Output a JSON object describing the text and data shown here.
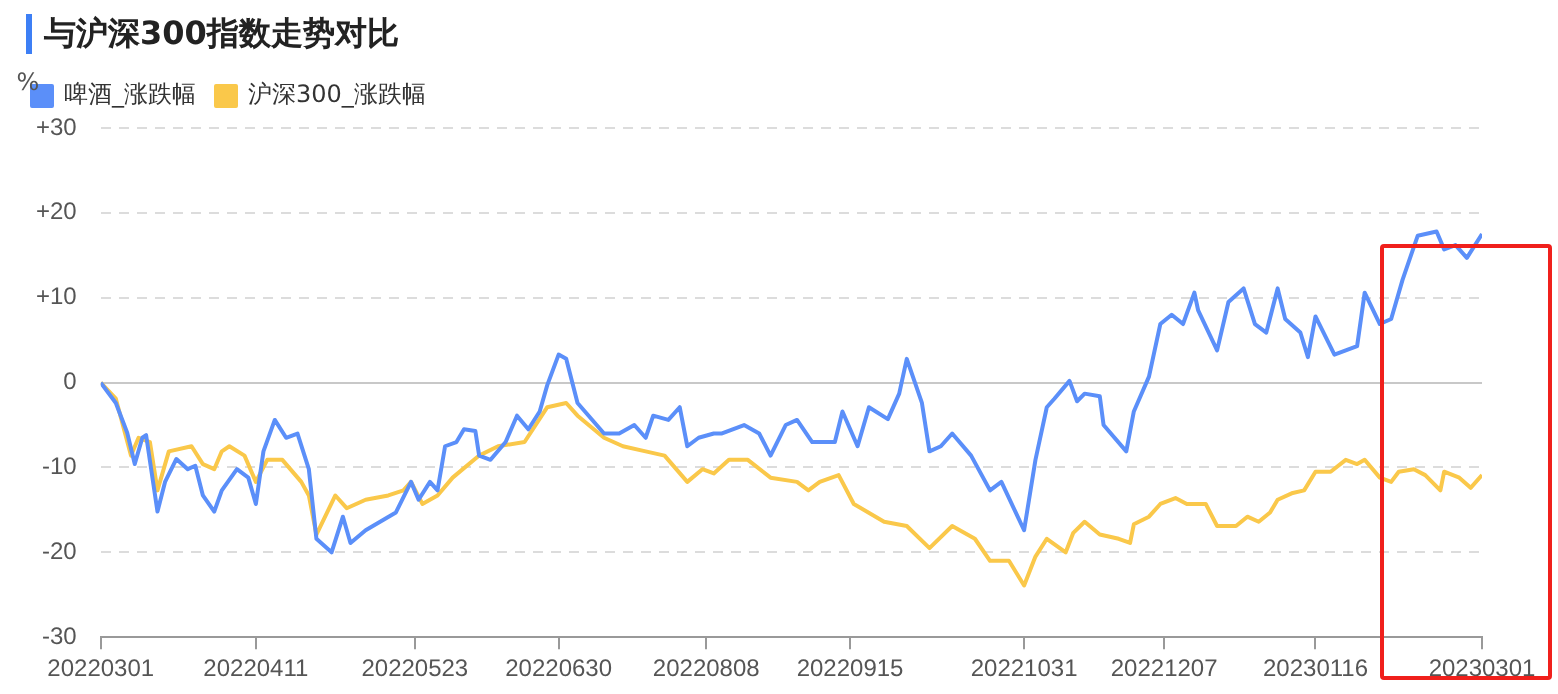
{
  "chart_data": {
    "type": "line",
    "title": "与沪深300指数走势对比",
    "ylabel": "%",
    "legend": "top left",
    "grid": "y",
    "marker": "none",
    "line_style": "solid",
    "xlim": [
      "2022-03-01",
      "2023-03-01"
    ],
    "xticks": [
      {
        "value": "2022-03-01",
        "label": "20220301"
      },
      {
        "value": "2022-04-11",
        "label": "20220411"
      },
      {
        "value": "2022-05-23",
        "label": "20220523"
      },
      {
        "value": "2022-06-30",
        "label": "20220630"
      },
      {
        "value": "2022-08-08",
        "label": "20220808"
      },
      {
        "value": "2022-09-15",
        "label": "20220915"
      },
      {
        "value": "2022-10-31",
        "label": "20221031"
      },
      {
        "value": "2022-12-07",
        "label": "20221207"
      },
      {
        "value": "2023-01-16",
        "label": "20230116"
      },
      {
        "value": "2023-03-01",
        "label": "20230301"
      }
    ],
    "ylim": [
      -30,
      30
    ],
    "yticks": [
      {
        "value": -30,
        "label": "-30"
      },
      {
        "value": -20,
        "label": "-20"
      },
      {
        "value": -10,
        "label": "-10"
      },
      0,
      {
        "value": 10,
        "label": "+10"
      },
      {
        "value": 20,
        "label": "+20"
      },
      {
        "value": 30,
        "label": "+30"
      }
    ],
    "series": [
      {
        "name": "啤酒_涨跌幅",
        "color": "#5b8ff9",
        "x": [
          "2022-03-01",
          "2022-03-05",
          "2022-03-08",
          "2022-03-10",
          "2022-03-12",
          "2022-03-13",
          "2022-03-16",
          "2022-03-18",
          "2022-03-21",
          "2022-03-24",
          "2022-03-26",
          "2022-03-28",
          "2022-03-31",
          "2022-04-02",
          "2022-04-06",
          "2022-04-09",
          "2022-04-11",
          "2022-04-13",
          "2022-04-16",
          "2022-04-19",
          "2022-04-22",
          "2022-04-25",
          "2022-04-27",
          "2022-05-01",
          "2022-05-04",
          "2022-05-06",
          "2022-05-10",
          "2022-05-18",
          "2022-05-22",
          "2022-05-24",
          "2022-05-27",
          "2022-05-29",
          "2022-05-31",
          "2022-06-03",
          "2022-06-05",
          "2022-06-08",
          "2022-06-09",
          "2022-06-12",
          "2022-06-16",
          "2022-06-19",
          "2022-06-22",
          "2022-06-25",
          "2022-06-27",
          "2022-06-30",
          "2022-07-02",
          "2022-07-05",
          "2022-07-12",
          "2022-07-16",
          "2022-07-20",
          "2022-07-23",
          "2022-07-25",
          "2022-07-29",
          "2022-08-01",
          "2022-08-03",
          "2022-08-06",
          "2022-08-10",
          "2022-08-12",
          "2022-08-18",
          "2022-08-22",
          "2022-08-25",
          "2022-08-29",
          "2022-09-01",
          "2022-09-05",
          "2022-09-11",
          "2022-09-13",
          "2022-09-17",
          "2022-09-20",
          "2022-09-25",
          "2022-09-28",
          "2022-09-30",
          "2022-10-04",
          "2022-10-06",
          "2022-10-09",
          "2022-10-12",
          "2022-10-17",
          "2022-10-22",
          "2022-10-25",
          "2022-10-31",
          "2022-11-03",
          "2022-11-06",
          "2022-11-08",
          "2022-11-12",
          "2022-11-14",
          "2022-11-16",
          "2022-11-20",
          "2022-11-21",
          "2022-11-27",
          "2022-11-29",
          "2022-12-03",
          "2022-12-06",
          "2022-12-09",
          "2022-12-12",
          "2022-12-15",
          "2022-12-16",
          "2022-12-21",
          "2022-12-24",
          "2022-12-28",
          "2022-12-31",
          "2023-01-03",
          "2023-01-06",
          "2023-01-08",
          "2023-01-12",
          "2023-01-14",
          "2023-01-16",
          "2023-01-21",
          "2023-01-24",
          "2023-01-27",
          "2023-01-29",
          "2023-02-02",
          "2023-02-05",
          "2023-02-08",
          "2023-02-12",
          "2023-02-17",
          "2023-02-19",
          "2023-02-22",
          "2023-02-25",
          "2023-03-01"
        ],
        "values": [
          0,
          -2.4,
          -5.9,
          -9.6,
          -6.5,
          -6.2,
          -15.2,
          -11.7,
          -9.0,
          -10.2,
          -9.8,
          -13.3,
          -15.2,
          -12.7,
          -10.2,
          -11.2,
          -14.3,
          -8.1,
          -4.4,
          -6.5,
          -6.0,
          -10.2,
          -18.4,
          -20.0,
          -15.8,
          -18.9,
          -17.4,
          -15.3,
          -11.7,
          -13.8,
          -11.7,
          -12.7,
          -7.5,
          -7.0,
          -5.5,
          -5.7,
          -8.6,
          -9.1,
          -7.0,
          -3.9,
          -5.5,
          -3.4,
          -0.3,
          3.3,
          2.8,
          -2.4,
          -6.0,
          -6.0,
          -5.0,
          -6.5,
          -3.9,
          -4.4,
          -2.9,
          -7.5,
          -6.5,
          -6.0,
          -6.0,
          -5.0,
          -6.0,
          -8.6,
          -5.0,
          -4.4,
          -7.0,
          -7.0,
          -3.4,
          -7.5,
          -2.9,
          -4.3,
          -1.3,
          2.8,
          -2.4,
          -8.1,
          -7.5,
          -6.0,
          -8.6,
          -12.7,
          -11.7,
          -17.4,
          -9.1,
          -2.9,
          -1.9,
          0.2,
          -2.2,
          -1.3,
          -1.6,
          -5.0,
          -8.1,
          -3.4,
          0.7,
          6.9,
          8.0,
          6.9,
          10.6,
          8.5,
          3.8,
          9.5,
          11.1,
          6.9,
          5.9,
          11.1,
          7.5,
          5.9,
          3.0,
          7.8,
          3.3,
          3.8,
          4.3,
          10.6,
          6.9,
          7.5,
          12.1,
          17.3,
          17.8,
          15.7,
          16.2,
          14.7,
          17.5
        ]
      },
      {
        "name": "沪深300_涨跌幅",
        "color": "#fac84a",
        "x": [
          "2022-03-01",
          "2022-03-05",
          "2022-03-09",
          "2022-03-11",
          "2022-03-14",
          "2022-03-16",
          "2022-03-19",
          "2022-03-25",
          "2022-03-28",
          "2022-03-31",
          "2022-04-02",
          "2022-04-04",
          "2022-04-08",
          "2022-04-11",
          "2022-04-14",
          "2022-04-18",
          "2022-04-23",
          "2022-04-25",
          "2022-04-27",
          "2022-05-02",
          "2022-05-05",
          "2022-05-10",
          "2022-05-16",
          "2022-05-20",
          "2022-05-22",
          "2022-05-25",
          "2022-05-29",
          "2022-06-02",
          "2022-06-09",
          "2022-06-14",
          "2022-06-21",
          "2022-06-27",
          "2022-07-02",
          "2022-07-05",
          "2022-07-12",
          "2022-07-17",
          "2022-07-23",
          "2022-07-28",
          "2022-08-03",
          "2022-08-07",
          "2022-08-10",
          "2022-08-14",
          "2022-08-19",
          "2022-08-25",
          "2022-09-01",
          "2022-09-04",
          "2022-09-07",
          "2022-09-12",
          "2022-09-16",
          "2022-09-24",
          "2022-09-30",
          "2022-10-06",
          "2022-10-12",
          "2022-10-18",
          "2022-10-22",
          "2022-10-27",
          "2022-10-31",
          "2022-11-03",
          "2022-11-06",
          "2022-11-11",
          "2022-11-13",
          "2022-11-16",
          "2022-11-20",
          "2022-11-25",
          "2022-11-28",
          "2022-11-29",
          "2022-12-03",
          "2022-12-06",
          "2022-12-10",
          "2022-12-13",
          "2022-12-18",
          "2022-12-21",
          "2022-12-26",
          "2022-12-29",
          "2023-01-01",
          "2023-01-04",
          "2023-01-06",
          "2023-01-10",
          "2023-01-13",
          "2023-01-16",
          "2023-01-20",
          "2023-01-24",
          "2023-01-27",
          "2023-01-29",
          "2023-02-02",
          "2023-02-05",
          "2023-02-07",
          "2023-02-11",
          "2023-02-14",
          "2023-02-18",
          "2023-02-19",
          "2023-02-23",
          "2023-02-26",
          "2023-03-01"
        ],
        "values": [
          0,
          -1.9,
          -8.6,
          -6.5,
          -7.0,
          -12.7,
          -8.1,
          -7.5,
          -9.6,
          -10.2,
          -8.1,
          -7.5,
          -8.6,
          -11.7,
          -9.1,
          -9.1,
          -11.7,
          -13.3,
          -17.9,
          -13.3,
          -14.8,
          -13.8,
          -13.3,
          -12.7,
          -11.7,
          -14.3,
          -13.3,
          -11.2,
          -8.6,
          -7.5,
          -7.0,
          -2.9,
          -2.4,
          -3.9,
          -6.5,
          -7.5,
          -8.1,
          -8.6,
          -11.7,
          -10.2,
          -10.7,
          -9.1,
          -9.1,
          -11.2,
          -11.7,
          -12.7,
          -11.7,
          -10.9,
          -14.3,
          -16.4,
          -16.9,
          -19.5,
          -16.9,
          -18.4,
          -21.0,
          -21.0,
          -23.9,
          -20.5,
          -18.4,
          -20.0,
          -17.7,
          -16.4,
          -17.9,
          -18.4,
          -18.9,
          -16.7,
          -15.8,
          -14.3,
          -13.6,
          -14.3,
          -14.3,
          -16.9,
          -16.9,
          -15.8,
          -16.4,
          -15.3,
          -13.8,
          -13.0,
          -12.7,
          -10.5,
          -10.5,
          -9.1,
          -9.6,
          -9.1,
          -11.2,
          -11.7,
          -10.5,
          -10.2,
          -10.9,
          -12.7,
          -10.5,
          -11.2,
          -12.4,
          -10.9
        ]
      }
    ]
  }
}
